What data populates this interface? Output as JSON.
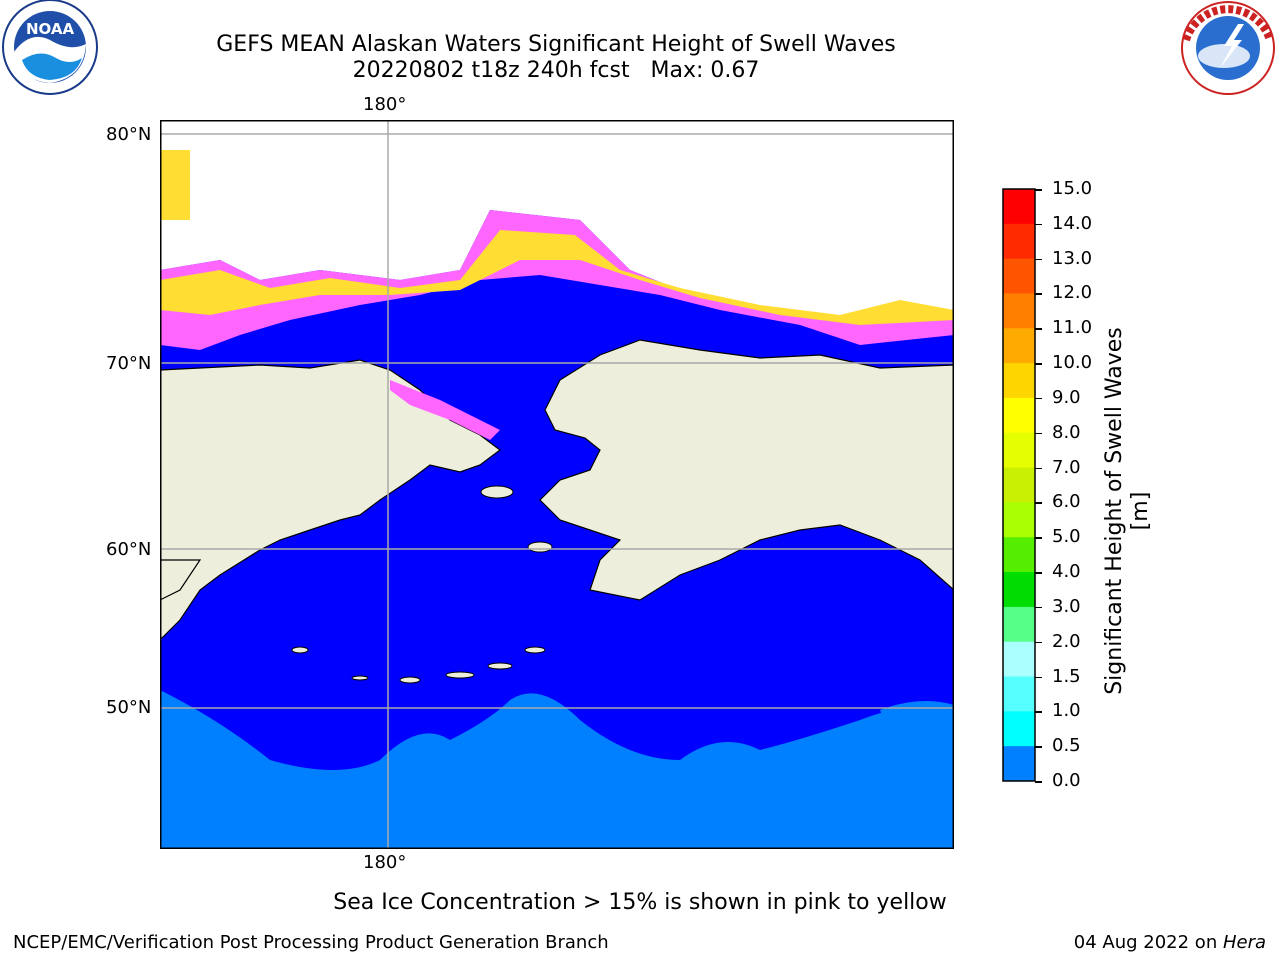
{
  "header": {
    "title_line1": "GEFS MEAN Alaskan Waters Significant Height of Swell Waves",
    "title_line2": "20220802 t18z 240h fcst   Max: 0.67"
  },
  "logos": {
    "left": {
      "name": "NOARA-logo",
      "text": "NOAA",
      "ring_text": "NATIONAL OCEANIC AND ATMOSPHERIC ADMINISTRATION · U.S. DEPARTMENT OF COMMERCE"
    },
    "right": {
      "name": "nws-logo",
      "ring_text": "NATIONAL WEATHER SERVICE"
    }
  },
  "map": {
    "lon_label_top": "180°",
    "lon_label_bottom": "180°",
    "lat_labels": [
      "80°N",
      "70°N",
      "60°N",
      "50°N"
    ],
    "colors": {
      "ocean_low": "#0000ff",
      "ocean_mid": "#0080ff",
      "land": "#eeeedd",
      "ice_pink": "#ff66ff",
      "ice_yellow": "#ffdd33",
      "grid": "#aaaaaa"
    }
  },
  "colorbar": {
    "label": "Significant Height of Swell Waves [m]",
    "ticks": [
      "15.0",
      "14.0",
      "13.0",
      "12.0",
      "11.0",
      "10.0",
      "9.0",
      "8.0",
      "7.0",
      "6.0",
      "5.0",
      "4.0",
      "3.0",
      "2.0",
      "1.5",
      "1.0",
      "0.5",
      "0.0"
    ],
    "colors": [
      "#ff0000",
      "#ff2a00",
      "#ff5500",
      "#ff8000",
      "#ffaa00",
      "#ffd500",
      "#ffff00",
      "#e5ff00",
      "#c8f000",
      "#aaff00",
      "#55ee00",
      "#00dd00",
      "#55ff88",
      "#aaffff",
      "#55ffff",
      "#00ffff",
      "#0080ff",
      "#0000ff"
    ]
  },
  "caption": "Sea Ice Concentration > 15% is shown in pink to yellow",
  "footer": {
    "left": "NCEP/EMC/Verification Post Processing Product Generation Branch",
    "right_date": "04 Aug 2022 on ",
    "right_host": "Hera"
  }
}
